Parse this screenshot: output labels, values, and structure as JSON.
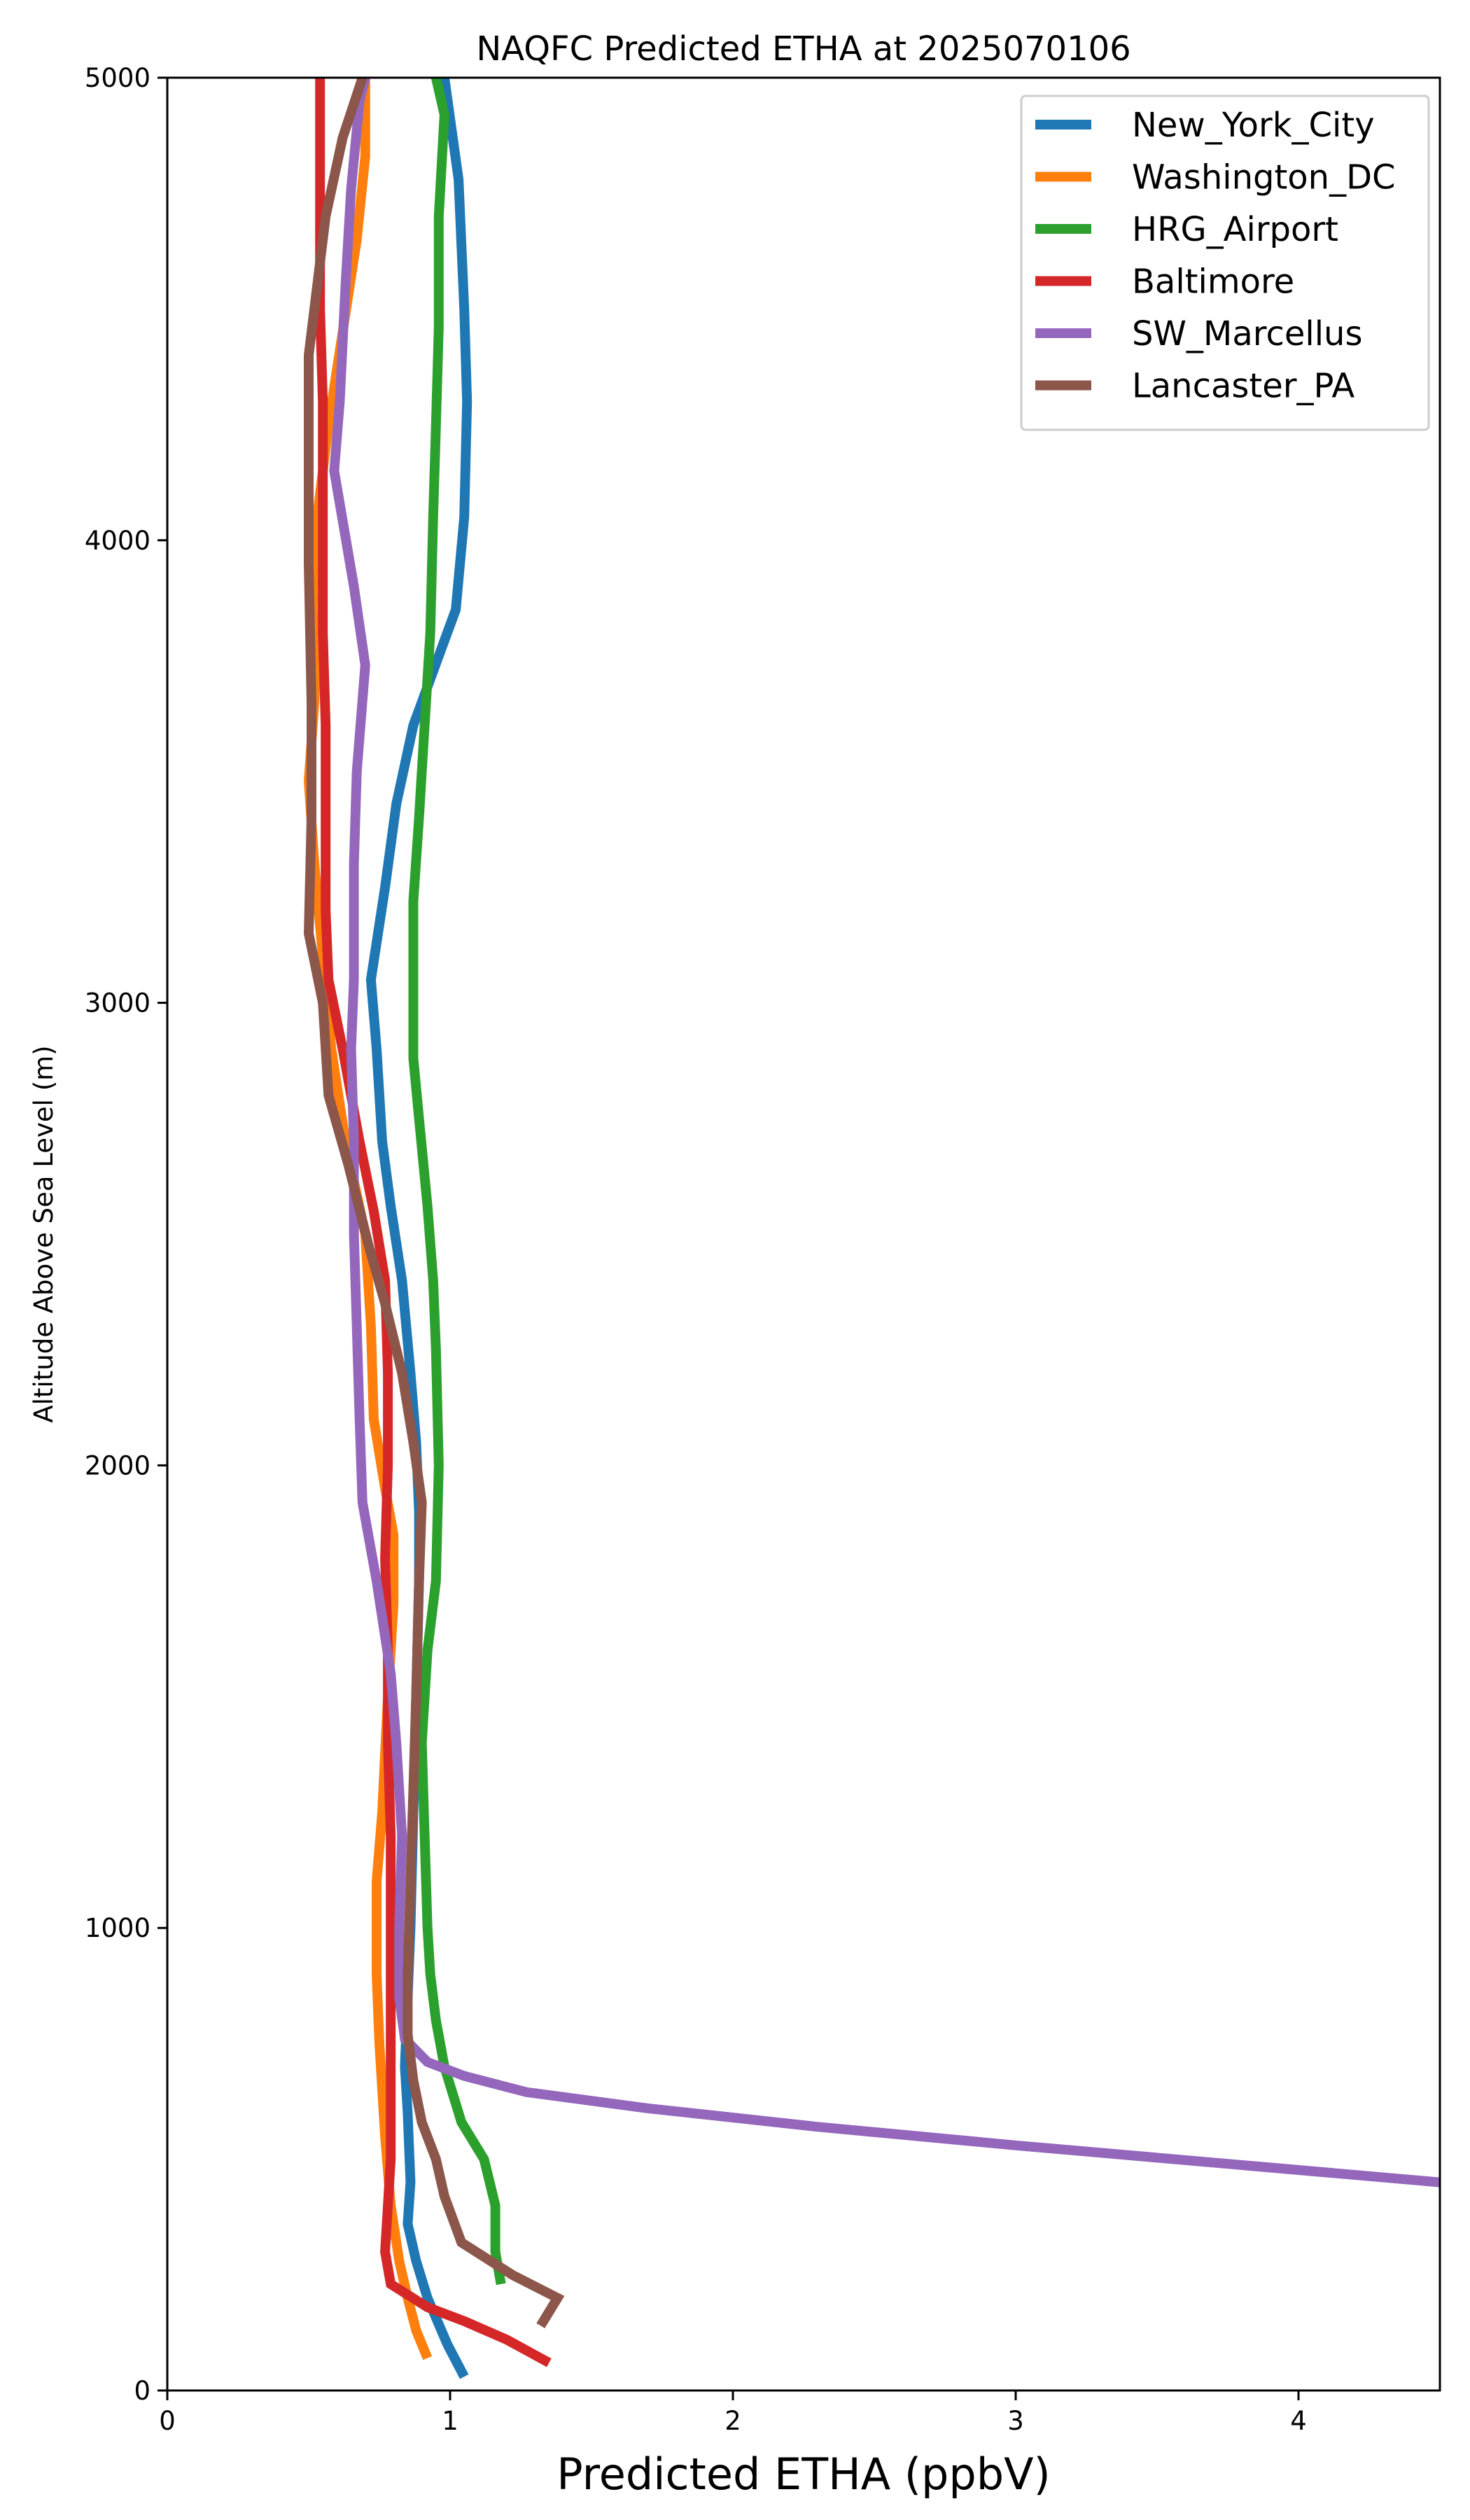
{
  "chart_data": {
    "type": "line",
    "title": "NAQFC Predicted ETHA at 2025070106",
    "xlabel": "Predicted ETHA (ppbV)",
    "ylabel": "Altitude Above Sea Level (m)",
    "xlim": [
      0,
      4.5
    ],
    "ylim": [
      0,
      5000
    ],
    "xticks": [
      "0",
      "1",
      "2",
      "3",
      "4"
    ],
    "yticks": [
      "0",
      "1000",
      "2000",
      "3000",
      "4000",
      "5000"
    ],
    "grid": false,
    "legend_position": "top-right",
    "series": [
      {
        "name": "New_York_City",
        "color": "#1f77b4",
        "points": [
          [
            1.05,
            30
          ],
          [
            0.99,
            100
          ],
          [
            0.92,
            200
          ],
          [
            0.88,
            280
          ],
          [
            0.85,
            360
          ],
          [
            0.86,
            450
          ],
          [
            0.85,
            600
          ],
          [
            0.84,
            700
          ],
          [
            0.85,
            850
          ],
          [
            0.86,
            1000
          ],
          [
            0.87,
            1250
          ],
          [
            0.88,
            1500
          ],
          [
            0.89,
            1750
          ],
          [
            0.89,
            1900
          ],
          [
            0.88,
            2050
          ],
          [
            0.86,
            2200
          ],
          [
            0.83,
            2400
          ],
          [
            0.79,
            2560
          ],
          [
            0.76,
            2700
          ],
          [
            0.74,
            2900
          ],
          [
            0.72,
            3050
          ],
          [
            0.77,
            3250
          ],
          [
            0.81,
            3430
          ],
          [
            0.87,
            3600
          ],
          [
            1.02,
            3850
          ],
          [
            1.05,
            4050
          ],
          [
            1.06,
            4300
          ],
          [
            1.05,
            4500
          ],
          [
            1.03,
            4780
          ],
          [
            0.98,
            5000
          ]
        ]
      },
      {
        "name": "Washington_DC",
        "color": "#ff7f0e",
        "points": [
          [
            0.92,
            70
          ],
          [
            0.88,
            130
          ],
          [
            0.85,
            200
          ],
          [
            0.82,
            280
          ],
          [
            0.79,
            400
          ],
          [
            0.77,
            550
          ],
          [
            0.75,
            750
          ],
          [
            0.74,
            900
          ],
          [
            0.74,
            1100
          ],
          [
            0.76,
            1250
          ],
          [
            0.78,
            1500
          ],
          [
            0.8,
            1700
          ],
          [
            0.8,
            1850
          ],
          [
            0.77,
            1950
          ],
          [
            0.73,
            2100
          ],
          [
            0.72,
            2300
          ],
          [
            0.7,
            2500
          ],
          [
            0.63,
            2700
          ],
          [
            0.58,
            2900
          ],
          [
            0.55,
            3100
          ],
          [
            0.52,
            3300
          ],
          [
            0.5,
            3480
          ],
          [
            0.52,
            3650
          ],
          [
            0.53,
            3850
          ],
          [
            0.53,
            4050
          ],
          [
            0.57,
            4250
          ],
          [
            0.62,
            4450
          ],
          [
            0.67,
            4650
          ],
          [
            0.7,
            4830
          ],
          [
            0.7,
            5000
          ]
        ]
      },
      {
        "name": "HRG_Airport",
        "color": "#2ca02c",
        "points": [
          [
            1.18,
            230
          ],
          [
            1.16,
            300
          ],
          [
            1.16,
            400
          ],
          [
            1.12,
            500
          ],
          [
            1.04,
            580
          ],
          [
            0.98,
            700
          ],
          [
            0.95,
            800
          ],
          [
            0.93,
            900
          ],
          [
            0.92,
            1000
          ],
          [
            0.91,
            1200
          ],
          [
            0.9,
            1400
          ],
          [
            0.92,
            1600
          ],
          [
            0.95,
            1750
          ],
          [
            0.96,
            2000
          ],
          [
            0.95,
            2250
          ],
          [
            0.94,
            2400
          ],
          [
            0.92,
            2560
          ],
          [
            0.89,
            2750
          ],
          [
            0.87,
            2880
          ],
          [
            0.87,
            3000
          ],
          [
            0.87,
            3220
          ],
          [
            0.89,
            3400
          ],
          [
            0.91,
            3600
          ],
          [
            0.93,
            3800
          ],
          [
            0.94,
            4050
          ],
          [
            0.95,
            4250
          ],
          [
            0.96,
            4460
          ],
          [
            0.96,
            4700
          ],
          [
            0.98,
            4920
          ],
          [
            0.95,
            5000
          ]
        ]
      },
      {
        "name": "Baltimore",
        "color": "#d62728",
        "points": [
          [
            1.35,
            60
          ],
          [
            1.2,
            110
          ],
          [
            1.05,
            150
          ],
          [
            0.92,
            180
          ],
          [
            0.79,
            230
          ],
          [
            0.77,
            300
          ],
          [
            0.78,
            400
          ],
          [
            0.79,
            500
          ],
          [
            0.79,
            600
          ],
          [
            0.79,
            800
          ],
          [
            0.79,
            1000
          ],
          [
            0.79,
            1200
          ],
          [
            0.78,
            1400
          ],
          [
            0.78,
            1600
          ],
          [
            0.77,
            1800
          ],
          [
            0.78,
            2000
          ],
          [
            0.78,
            2200
          ],
          [
            0.77,
            2400
          ],
          [
            0.73,
            2550
          ],
          [
            0.68,
            2700
          ],
          [
            0.62,
            2900
          ],
          [
            0.57,
            3050
          ],
          [
            0.56,
            3200
          ],
          [
            0.56,
            3400
          ],
          [
            0.56,
            3600
          ],
          [
            0.55,
            3800
          ],
          [
            0.55,
            4000
          ],
          [
            0.55,
            4300
          ],
          [
            0.54,
            4500
          ],
          [
            0.54,
            4800
          ],
          [
            0.54,
            5000
          ]
        ]
      },
      {
        "name": "SW_Marcellus",
        "color": "#9467bd",
        "points": [
          [
            4.5,
            450
          ],
          [
            3.0,
            530
          ],
          [
            2.3,
            570
          ],
          [
            1.7,
            610
          ],
          [
            1.27,
            645
          ],
          [
            1.05,
            680
          ],
          [
            0.92,
            710
          ],
          [
            0.84,
            760
          ],
          [
            0.82,
            850
          ],
          [
            0.82,
            1000
          ],
          [
            0.83,
            1200
          ],
          [
            0.81,
            1400
          ],
          [
            0.79,
            1550
          ],
          [
            0.74,
            1750
          ],
          [
            0.69,
            1920
          ],
          [
            0.68,
            2100
          ],
          [
            0.67,
            2300
          ],
          [
            0.66,
            2500
          ],
          [
            0.66,
            2700
          ],
          [
            0.65,
            2900
          ],
          [
            0.66,
            3050
          ],
          [
            0.66,
            3300
          ],
          [
            0.67,
            3500
          ],
          [
            0.7,
            3730
          ],
          [
            0.66,
            3900
          ],
          [
            0.59,
            4150
          ],
          [
            0.61,
            4300
          ],
          [
            0.63,
            4550
          ],
          [
            0.65,
            4760
          ],
          [
            0.68,
            4950
          ],
          [
            0.7,
            5000
          ]
        ]
      },
      {
        "name": "Lancaster_PA",
        "color": "#8c564b",
        "points": [
          [
            1.32,
            140
          ],
          [
            1.38,
            200
          ],
          [
            1.22,
            250
          ],
          [
            1.04,
            320
          ],
          [
            0.98,
            420
          ],
          [
            0.95,
            500
          ],
          [
            0.9,
            580
          ],
          [
            0.87,
            670
          ],
          [
            0.85,
            770
          ],
          [
            0.85,
            900
          ],
          [
            0.86,
            1100
          ],
          [
            0.87,
            1300
          ],
          [
            0.88,
            1500
          ],
          [
            0.89,
            1750
          ],
          [
            0.9,
            1920
          ],
          [
            0.87,
            2050
          ],
          [
            0.83,
            2200
          ],
          [
            0.77,
            2350
          ],
          [
            0.71,
            2480
          ],
          [
            0.64,
            2650
          ],
          [
            0.57,
            2800
          ],
          [
            0.55,
            3000
          ],
          [
            0.5,
            3150
          ],
          [
            0.51,
            3400
          ],
          [
            0.51,
            3650
          ],
          [
            0.5,
            3950
          ],
          [
            0.5,
            4200
          ],
          [
            0.5,
            4400
          ],
          [
            0.56,
            4700
          ],
          [
            0.62,
            4870
          ],
          [
            0.69,
            5000
          ]
        ]
      }
    ]
  }
}
